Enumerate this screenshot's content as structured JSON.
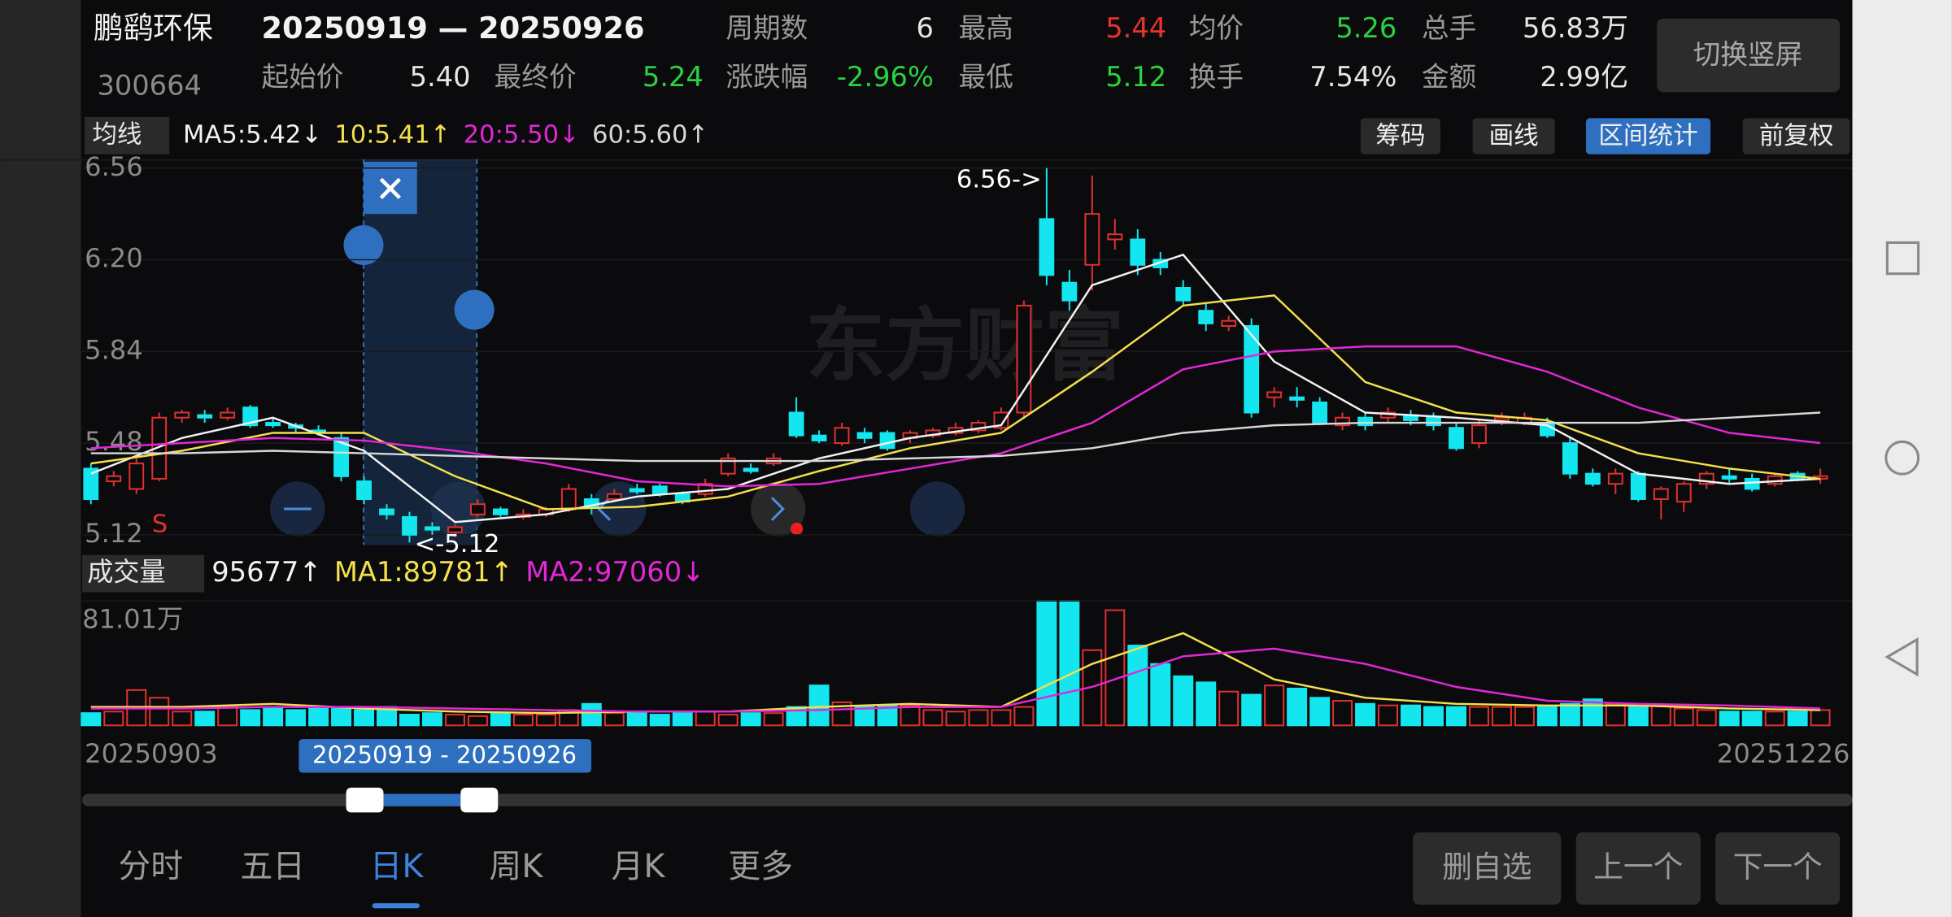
{
  "header": {
    "name": "鹏鹞环保",
    "code": "300664",
    "range": "20250919 — 20250926",
    "switch_button": "切换竖屏",
    "stats": [
      {
        "label": "周期数",
        "value": "6",
        "color": "#e6e6e6"
      },
      {
        "label": "最高",
        "value": "5.44",
        "color": "#e8322e"
      },
      {
        "label": "均价",
        "value": "5.26",
        "color": "#2bd13f"
      },
      {
        "label": "总手",
        "value": "56.83万",
        "color": "#e6e6e6"
      },
      {
        "label": "起始价",
        "value": "5.40",
        "color": "#e6e6e6"
      },
      {
        "label": "最终价",
        "value": "5.24",
        "color": "#2bd13f"
      },
      {
        "label": "涨跌幅",
        "value": "-2.96%",
        "color": "#2bd13f"
      },
      {
        "label": "最低",
        "value": "5.12",
        "color": "#2bd13f"
      },
      {
        "label": "换手",
        "value": "7.54%",
        "color": "#e6e6e6"
      },
      {
        "label": "金额",
        "value": "2.99亿",
        "color": "#e6e6e6"
      }
    ]
  },
  "toolbar": {
    "selector": "均线",
    "buttons": [
      "筹码",
      "画线",
      "区间统计",
      "前复权"
    ],
    "active_button": 2
  },
  "chart_data": [
    {
      "type": "candlestick",
      "up_color": "#e0312f",
      "down_color": "#13e6ef",
      "legend": [
        {
          "text": "MA5:5.42↓",
          "color": "#f2f2f2"
        },
        {
          "text": "10:5.41↑",
          "color": "#f4e04d"
        },
        {
          "text": "20:5.50↓",
          "color": "#e327d6"
        },
        {
          "text": "60:5.60↑",
          "color": "#d8d8d8"
        }
      ],
      "ylim": [
        5.08,
        6.58
      ],
      "yticks": [
        6.56,
        {
          "value": 6.2,
          "label": "6.20"
        },
        5.84,
        5.48,
        5.12
      ],
      "grid": true,
      "candles": [
        [
          5.38,
          5.4,
          5.24,
          5.26
        ],
        [
          5.33,
          5.37,
          5.31,
          5.35
        ],
        [
          5.3,
          5.42,
          5.28,
          5.4
        ],
        [
          5.34,
          5.6,
          5.33,
          5.58
        ],
        [
          5.58,
          5.61,
          5.56,
          5.6
        ],
        [
          5.59,
          5.61,
          5.56,
          5.58
        ],
        [
          5.58,
          5.62,
          5.57,
          5.6
        ],
        [
          5.62,
          5.63,
          5.54,
          5.55
        ],
        [
          5.56,
          5.58,
          5.54,
          5.55
        ],
        [
          5.55,
          5.56,
          5.52,
          5.54
        ],
        [
          5.53,
          5.55,
          5.51,
          5.52
        ],
        [
          5.5,
          5.52,
          5.33,
          5.35
        ],
        [
          5.33,
          5.35,
          5.24,
          5.26
        ],
        [
          5.22,
          5.24,
          5.18,
          5.2
        ],
        [
          5.19,
          5.21,
          5.09,
          5.12
        ],
        [
          5.15,
          5.17,
          5.12,
          5.14
        ],
        [
          5.13,
          5.16,
          5.11,
          5.15
        ],
        [
          5.2,
          5.26,
          5.19,
          5.24
        ],
        [
          5.22,
          5.23,
          5.19,
          5.2
        ],
        [
          5.19,
          5.22,
          5.18,
          5.2
        ],
        [
          5.2,
          5.23,
          5.19,
          5.22
        ],
        [
          5.22,
          5.32,
          5.21,
          5.3
        ],
        [
          5.26,
          5.28,
          5.2,
          5.23
        ],
        [
          5.26,
          5.3,
          5.25,
          5.28
        ],
        [
          5.3,
          5.32,
          5.28,
          5.29
        ],
        [
          5.31,
          5.32,
          5.27,
          5.28
        ],
        [
          5.28,
          5.29,
          5.24,
          5.25
        ],
        [
          5.28,
          5.34,
          5.27,
          5.32
        ],
        [
          5.36,
          5.44,
          5.35,
          5.42
        ],
        [
          5.38,
          5.4,
          5.36,
          5.37
        ],
        [
          5.4,
          5.44,
          5.39,
          5.42
        ],
        [
          5.6,
          5.66,
          5.5,
          5.51
        ],
        [
          5.51,
          5.53,
          5.48,
          5.49
        ],
        [
          5.48,
          5.56,
          5.47,
          5.54
        ],
        [
          5.52,
          5.54,
          5.48,
          5.5
        ],
        [
          5.52,
          5.53,
          5.45,
          5.46
        ],
        [
          5.5,
          5.53,
          5.48,
          5.52
        ],
        [
          5.51,
          5.54,
          5.5,
          5.53
        ],
        [
          5.52,
          5.56,
          5.51,
          5.54
        ],
        [
          5.53,
          5.57,
          5.52,
          5.56
        ],
        [
          5.54,
          5.62,
          5.53,
          5.6
        ],
        [
          5.6,
          6.04,
          5.58,
          6.02
        ],
        [
          6.36,
          6.56,
          6.1,
          6.14
        ],
        [
          6.11,
          6.16,
          6.0,
          6.04
        ],
        [
          6.18,
          6.53,
          6.08,
          6.38
        ],
        [
          6.28,
          6.36,
          6.24,
          6.3
        ],
        [
          6.28,
          6.32,
          6.14,
          6.18
        ],
        [
          6.2,
          6.23,
          6.14,
          6.17
        ],
        [
          6.09,
          6.12,
          6.02,
          6.04
        ],
        [
          6.0,
          6.03,
          5.92,
          5.95
        ],
        [
          5.94,
          5.98,
          5.92,
          5.96
        ],
        [
          5.94,
          5.97,
          5.58,
          5.6
        ],
        [
          5.66,
          5.7,
          5.62,
          5.68
        ],
        [
          5.66,
          5.7,
          5.62,
          5.65
        ],
        [
          5.64,
          5.66,
          5.55,
          5.56
        ],
        [
          5.55,
          5.6,
          5.53,
          5.58
        ],
        [
          5.58,
          5.6,
          5.53,
          5.55
        ],
        [
          5.58,
          5.62,
          5.56,
          5.6
        ],
        [
          5.59,
          5.61,
          5.55,
          5.57
        ],
        [
          5.58,
          5.6,
          5.53,
          5.55
        ],
        [
          5.54,
          5.56,
          5.45,
          5.46
        ],
        [
          5.48,
          5.57,
          5.46,
          5.55
        ],
        [
          5.57,
          5.6,
          5.55,
          5.58
        ],
        [
          5.56,
          5.6,
          5.55,
          5.58
        ],
        [
          5.56,
          5.58,
          5.5,
          5.51
        ],
        [
          5.48,
          5.5,
          5.34,
          5.36
        ],
        [
          5.36,
          5.38,
          5.31,
          5.32
        ],
        [
          5.32,
          5.38,
          5.28,
          5.36
        ],
        [
          5.36,
          5.37,
          5.25,
          5.26
        ],
        [
          5.26,
          5.31,
          5.18,
          5.3
        ],
        [
          5.25,
          5.33,
          5.21,
          5.32
        ],
        [
          5.32,
          5.37,
          5.3,
          5.36
        ],
        [
          5.35,
          5.38,
          5.32,
          5.34
        ],
        [
          5.34,
          5.36,
          5.29,
          5.3
        ],
        [
          5.32,
          5.36,
          5.31,
          5.35
        ],
        [
          5.36,
          5.37,
          5.33,
          5.34
        ],
        [
          5.34,
          5.38,
          5.32,
          5.35
        ]
      ],
      "ma_x": [
        0,
        4,
        8,
        12,
        16,
        20,
        24,
        28,
        32,
        36,
        40,
        44,
        48,
        52,
        56,
        60,
        64,
        68,
        72,
        76
      ],
      "series": [
        {
          "color": "#f2f2f2",
          "values": [
            5.36,
            5.5,
            5.58,
            5.45,
            5.17,
            5.2,
            5.27,
            5.3,
            5.42,
            5.5,
            5.55,
            6.1,
            6.22,
            5.8,
            5.6,
            5.58,
            5.55,
            5.36,
            5.32,
            5.34
          ]
        },
        {
          "color": "#f4e04d",
          "values": [
            5.4,
            5.45,
            5.52,
            5.52,
            5.35,
            5.22,
            5.23,
            5.27,
            5.37,
            5.46,
            5.52,
            5.76,
            6.02,
            6.06,
            5.72,
            5.6,
            5.57,
            5.44,
            5.38,
            5.34
          ]
        },
        {
          "color": "#e327d6",
          "values": [
            5.46,
            5.48,
            5.5,
            5.49,
            5.45,
            5.4,
            5.33,
            5.31,
            5.32,
            5.38,
            5.44,
            5.56,
            5.77,
            5.84,
            5.86,
            5.86,
            5.76,
            5.62,
            5.52,
            5.48
          ]
        },
        {
          "color": "#d8d8d8",
          "values": [
            5.44,
            5.44,
            5.45,
            5.44,
            5.43,
            5.42,
            5.41,
            5.41,
            5.41,
            5.42,
            5.43,
            5.46,
            5.52,
            5.55,
            5.56,
            5.56,
            5.56,
            5.56,
            5.58,
            5.6
          ]
        }
      ],
      "annotations": {
        "high": "6.56->",
        "low": "<-5.12",
        "marker": "S",
        "watermark": "东方财富"
      }
    },
    {
      "type": "bar",
      "selector": "成交量",
      "legend": [
        {
          "text": "95677↑",
          "color": "#f2f2f2"
        },
        {
          "text": "MA1:89781↑",
          "color": "#f4e04d"
        },
        {
          "text": "MA2:97060↓",
          "color": "#e327d6"
        }
      ],
      "ylim": [
        0,
        81.01
      ],
      "yticks": [
        {
          "value": 81.01,
          "label": "81.01万"
        }
      ],
      "values": [
        8,
        9,
        23,
        18,
        9,
        9,
        12,
        10,
        12,
        10,
        12,
        12,
        10,
        12,
        7,
        8,
        7,
        6,
        8,
        7,
        7,
        10,
        14,
        8,
        8,
        7,
        8,
        9,
        7,
        8,
        8,
        12,
        26,
        15,
        12,
        13,
        13,
        10,
        9,
        10,
        10,
        12,
        81.01,
        81.01,
        49,
        75,
        52,
        40,
        32,
        28,
        22,
        20,
        26,
        24,
        18,
        16,
        14,
        13,
        13,
        12,
        12,
        12,
        12,
        12,
        12,
        14,
        17,
        14,
        13,
        13,
        11,
        10,
        9,
        9,
        9,
        9,
        10
      ],
      "series": [
        {
          "color": "#f4e04d",
          "values": [
            12,
            12,
            14,
            11,
            9,
            8,
            9,
            9,
            12,
            14,
            12,
            40,
            60,
            30,
            18,
            14,
            13,
            13,
            11,
            10
          ]
        },
        {
          "color": "#e327d6",
          "values": [
            11,
            11,
            12,
            12,
            11,
            10,
            9,
            9,
            10,
            12,
            12,
            25,
            45,
            50,
            40,
            25,
            16,
            14,
            13,
            11
          ]
        }
      ]
    }
  ],
  "timeline": {
    "start": "20250903",
    "end": "20251226",
    "selection": "20250919 - 20250926"
  },
  "tabs": {
    "items": [
      "分时",
      "五日",
      "日K",
      "周K",
      "月K",
      "更多"
    ],
    "active": 2
  },
  "actions": [
    "删自选",
    "上一个",
    "下一个"
  ]
}
